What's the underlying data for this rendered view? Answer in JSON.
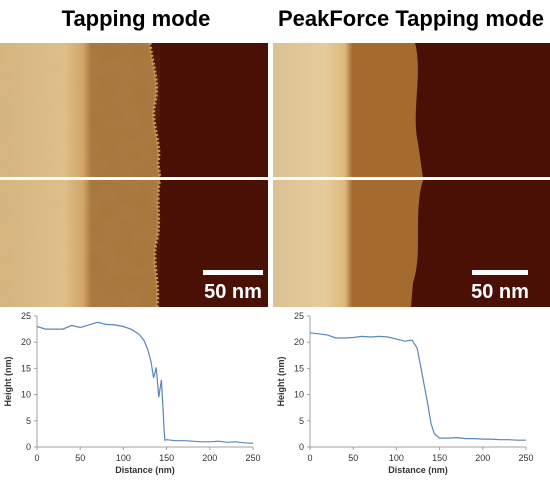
{
  "panels": {
    "left_title": "Tapping mode",
    "right_title": "PeakForce Tapping mode",
    "left_scale": "50 nm",
    "right_scale": "50 nm"
  },
  "colors": {
    "high_surface": "#d8b67c",
    "low_surface": "#4a1006",
    "profile_line": "#5b86b8",
    "separator": "#ffffff"
  },
  "chart_data": [
    {
      "type": "line",
      "title": "",
      "xlabel": "Distance (nm)",
      "ylabel": "Height (nm)",
      "xlim": [
        0,
        250
      ],
      "ylim": [
        0,
        25
      ],
      "xticks": [
        0,
        50,
        100,
        150,
        200,
        250
      ],
      "yticks": [
        0,
        5,
        10,
        15,
        20,
        25
      ],
      "grid": false,
      "series": [
        {
          "x": [
            0,
            10,
            20,
            30,
            40,
            50,
            60,
            70,
            80,
            90,
            100,
            110,
            118,
            124,
            128,
            132,
            135,
            138,
            141,
            144,
            146,
            147,
            148,
            150,
            160,
            170,
            180,
            190,
            200,
            210,
            220,
            230,
            240,
            250
          ],
          "y": [
            23,
            22.5,
            22.5,
            22.5,
            23.2,
            22.8,
            23.3,
            23.8,
            23.4,
            23.3,
            23.0,
            22.4,
            21.5,
            20.3,
            18.7,
            16.3,
            13.2,
            15.2,
            9.5,
            12.8,
            7.0,
            3.5,
            1.3,
            1.4,
            1.2,
            1.2,
            1.1,
            1.0,
            1.0,
            1.1,
            0.9,
            1.0,
            0.8,
            0.7
          ]
        }
      ]
    },
    {
      "type": "line",
      "title": "",
      "xlabel": "Distance (nm)",
      "ylabel": "Height (nm)",
      "xlim": [
        0,
        250
      ],
      "ylim": [
        0,
        25
      ],
      "xticks": [
        0,
        50,
        100,
        150,
        200,
        250
      ],
      "yticks": [
        0,
        5,
        10,
        15,
        20,
        25
      ],
      "grid": false,
      "series": [
        {
          "x": [
            0,
            10,
            20,
            30,
            40,
            50,
            60,
            70,
            80,
            90,
            100,
            110,
            118,
            124,
            128,
            132,
            136,
            140,
            144,
            150,
            160,
            170,
            180,
            190,
            200,
            210,
            220,
            230,
            240,
            250
          ],
          "y": [
            21.8,
            21.6,
            21.4,
            20.8,
            20.8,
            20.9,
            21.1,
            21.0,
            21.1,
            21.0,
            20.6,
            20.2,
            20.4,
            18.9,
            15.5,
            12.0,
            8.5,
            4.5,
            2.5,
            1.7,
            1.7,
            1.8,
            1.6,
            1.6,
            1.5,
            1.5,
            1.4,
            1.4,
            1.3,
            1.3
          ]
        }
      ]
    }
  ]
}
